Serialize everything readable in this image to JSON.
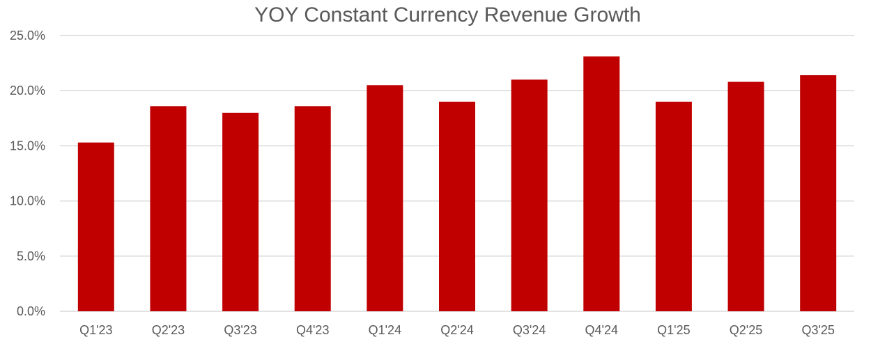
{
  "chart_data": {
    "type": "bar",
    "title": "YOY Constant Currency Revenue Growth",
    "xlabel": "",
    "ylabel": "",
    "categories": [
      "Q1'23",
      "Q2'23",
      "Q3'23",
      "Q4'23",
      "Q1'24",
      "Q2'24",
      "Q3'24",
      "Q4'24",
      "Q1'25",
      "Q2'25",
      "Q3'25"
    ],
    "values": [
      15.3,
      18.6,
      18.0,
      18.6,
      20.5,
      19.0,
      21.0,
      23.1,
      19.0,
      20.8,
      21.4
    ],
    "ylim": [
      0,
      25
    ],
    "yticks": [
      "0.0%",
      "5.0%",
      "10.0%",
      "15.0%",
      "20.0%",
      "25.0%"
    ],
    "grid": true,
    "bar_color": "#C00000",
    "grid_color": "#D9D9D9"
  }
}
